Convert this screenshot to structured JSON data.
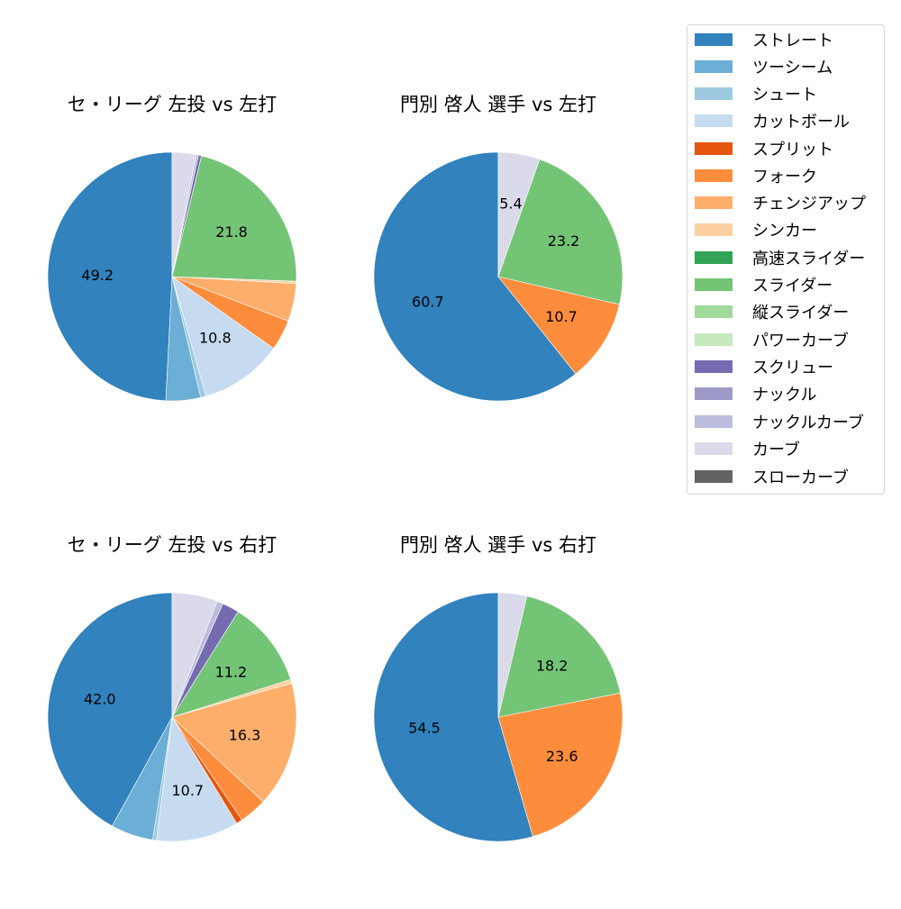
{
  "legend": {
    "items": [
      {
        "label": "ストレート",
        "color": "#3182bd"
      },
      {
        "label": "ツーシーム",
        "color": "#6baed6"
      },
      {
        "label": "シュート",
        "color": "#9ecae1"
      },
      {
        "label": "カットボール",
        "color": "#c6dbef"
      },
      {
        "label": "スプリット",
        "color": "#e6550d"
      },
      {
        "label": "フォーク",
        "color": "#fd8d3c"
      },
      {
        "label": "チェンジアップ",
        "color": "#fdae6b"
      },
      {
        "label": "シンカー",
        "color": "#fdd0a2"
      },
      {
        "label": "高速スライダー",
        "color": "#31a354"
      },
      {
        "label": "スライダー",
        "color": "#74c476"
      },
      {
        "label": "縦スライダー",
        "color": "#a1d99b"
      },
      {
        "label": "パワーカーブ",
        "color": "#c7e9c0"
      },
      {
        "label": "スクリュー",
        "color": "#756bb1"
      },
      {
        "label": "ナックル",
        "color": "#9e9ac8"
      },
      {
        "label": "ナックルカーブ",
        "color": "#bcbddc"
      },
      {
        "label": "カーブ",
        "color": "#dadaeb"
      },
      {
        "label": "スローカーブ",
        "color": "#636363"
      }
    ]
  },
  "chart_data": [
    {
      "type": "pie",
      "title": "セ・リーグ 左投 vs 左打",
      "start_angle": 90,
      "direction": "counterclockwise",
      "slices": [
        {
          "label": "ストレート",
          "value": 49.2,
          "shown": "49.2"
        },
        {
          "label": "ツーシーム",
          "value": 4.5,
          "shown": ""
        },
        {
          "label": "シュート",
          "value": 0.7,
          "shown": ""
        },
        {
          "label": "カットボール",
          "value": 10.8,
          "shown": "10.8"
        },
        {
          "label": "フォーク",
          "value": 4.0,
          "shown": ""
        },
        {
          "label": "チェンジアップ",
          "value": 4.9,
          "shown": ""
        },
        {
          "label": "シンカー",
          "value": 0.3,
          "shown": ""
        },
        {
          "label": "スライダー",
          "value": 21.8,
          "shown": "21.8"
        },
        {
          "label": "スクリュー",
          "value": 0.4,
          "shown": ""
        },
        {
          "label": "ナックルカーブ",
          "value": 0.3,
          "shown": ""
        },
        {
          "label": "カーブ",
          "value": 3.1,
          "shown": ""
        }
      ]
    },
    {
      "type": "pie",
      "title": "門別 啓人 選手 vs 左打",
      "start_angle": 90,
      "direction": "counterclockwise",
      "slices": [
        {
          "label": "ストレート",
          "value": 60.7,
          "shown": "60.7"
        },
        {
          "label": "フォーク",
          "value": 10.7,
          "shown": "10.7"
        },
        {
          "label": "スライダー",
          "value": 23.2,
          "shown": "23.2"
        },
        {
          "label": "カーブ",
          "value": 5.4,
          "shown": "5.4"
        }
      ]
    },
    {
      "type": "pie",
      "title": "セ・リーグ 左投 vs 右打",
      "start_angle": 90,
      "direction": "counterclockwise",
      "slices": [
        {
          "label": "ストレート",
          "value": 42.0,
          "shown": "42.0"
        },
        {
          "label": "ツーシーム",
          "value": 5.5,
          "shown": ""
        },
        {
          "label": "シュート",
          "value": 0.5,
          "shown": ""
        },
        {
          "label": "カットボール",
          "value": 10.7,
          "shown": "10.7"
        },
        {
          "label": "スプリット",
          "value": 0.8,
          "shown": ""
        },
        {
          "label": "フォーク",
          "value": 3.6,
          "shown": ""
        },
        {
          "label": "チェンジアップ",
          "value": 16.3,
          "shown": "16.3"
        },
        {
          "label": "シンカー",
          "value": 0.5,
          "shown": ""
        },
        {
          "label": "スライダー",
          "value": 11.2,
          "shown": "11.2"
        },
        {
          "label": "スクリュー",
          "value": 2.2,
          "shown": ""
        },
        {
          "label": "ナックルカーブ",
          "value": 0.8,
          "shown": ""
        },
        {
          "label": "カーブ",
          "value": 5.9,
          "shown": ""
        }
      ]
    },
    {
      "type": "pie",
      "title": "門別 啓人 選手 vs 右打",
      "start_angle": 90,
      "direction": "counterclockwise",
      "slices": [
        {
          "label": "ストレート",
          "value": 54.5,
          "shown": "54.5"
        },
        {
          "label": "フォーク",
          "value": 23.6,
          "shown": "23.6"
        },
        {
          "label": "スライダー",
          "value": 18.2,
          "shown": "18.2"
        },
        {
          "label": "カーブ",
          "value": 3.7,
          "shown": ""
        }
      ]
    }
  ]
}
